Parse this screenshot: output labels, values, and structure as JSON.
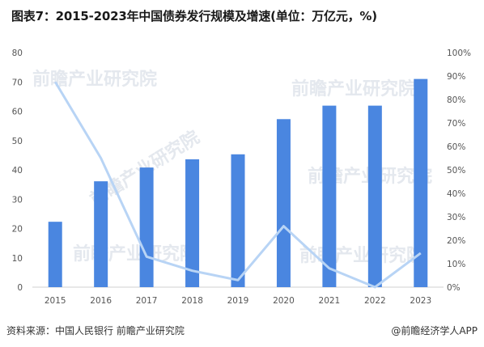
{
  "title": "图表7：2015-2023年中国债券发行规模及增速(单位：万亿元，%)",
  "watermark": "前瞻产业研究院",
  "footer": {
    "source": "资料来源：中国人民银行 前瞻产业研究院",
    "brand": "@前瞻经济学人APP"
  },
  "colors": {
    "bar": "#4a86e0",
    "line": "#b8d4f5"
  },
  "chart_data": {
    "type": "bar",
    "categories": [
      "2015",
      "2016",
      "2017",
      "2018",
      "2019",
      "2020",
      "2021",
      "2022",
      "2023"
    ],
    "series": [
      {
        "type": "bar",
        "axis": "left",
        "values": [
          22.3,
          36.1,
          40.8,
          43.6,
          45.3,
          57.3,
          61.9,
          61.9,
          71.0
        ]
      },
      {
        "type": "line",
        "axis": "right",
        "values": [
          87.5,
          55.0,
          13.0,
          7.0,
          3.0,
          26.0,
          8.0,
          0.0,
          14.5
        ]
      }
    ],
    "y_left": {
      "min": 0,
      "max": 80,
      "ticks": [
        "0",
        "10",
        "20",
        "30",
        "40",
        "50",
        "60",
        "70",
        "80"
      ]
    },
    "y_right": {
      "min": 0,
      "max": 100,
      "ticks": [
        "0%",
        "10%",
        "20%",
        "30%",
        "40%",
        "50%",
        "60%",
        "70%",
        "80%",
        "90%",
        "100%"
      ]
    },
    "grid": false
  }
}
